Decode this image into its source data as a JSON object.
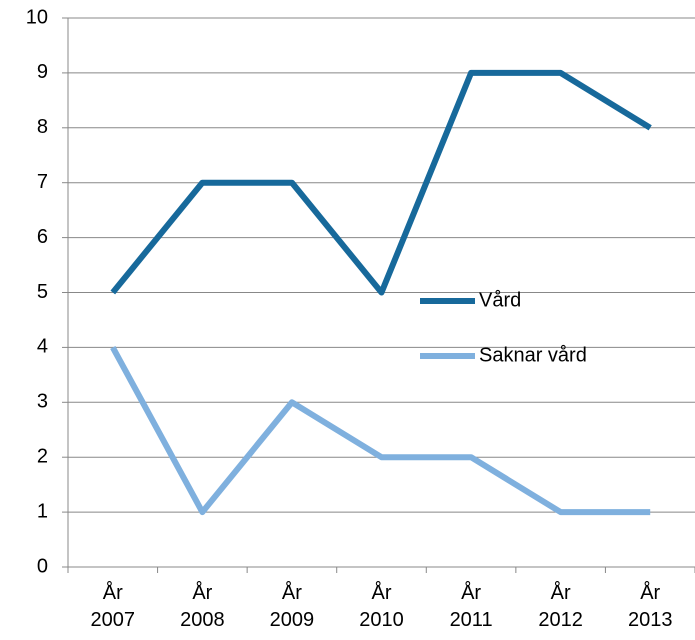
{
  "chart_data": {
    "type": "line",
    "categories": [
      "År 2007",
      "År 2008",
      "År 2009",
      "År 2010",
      "År 2011",
      "År 2012",
      "År 2013"
    ],
    "series": [
      {
        "name": "Vård",
        "color": "#17699b",
        "values": [
          5,
          7,
          7,
          5,
          9,
          9,
          8
        ]
      },
      {
        "name": "Saknar vård",
        "color": "#7fb0de",
        "values": [
          4,
          1,
          3,
          2,
          2,
          1,
          1
        ]
      }
    ],
    "ylim": [
      0,
      10
    ],
    "yticks": [
      0,
      1,
      2,
      3,
      4,
      5,
      6,
      7,
      8,
      9,
      10
    ],
    "grid": true,
    "legend": "right"
  }
}
